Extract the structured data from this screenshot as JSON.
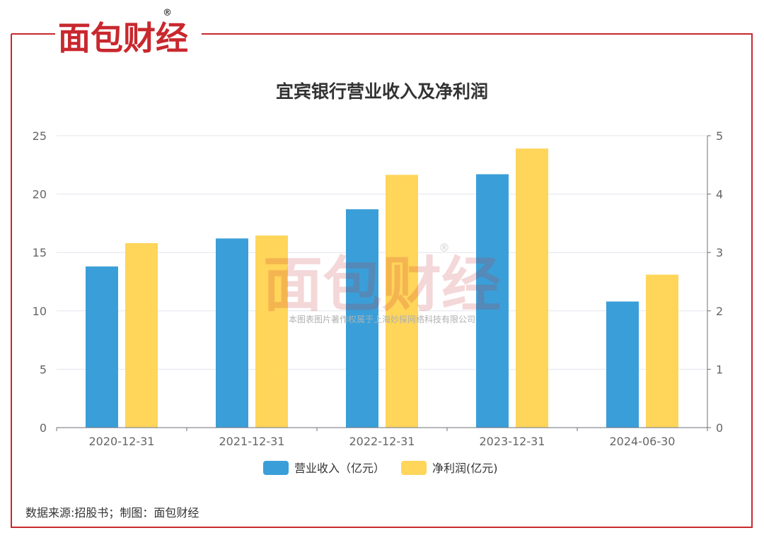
{
  "brand": {
    "name": "面包财经",
    "registered_mark": "®"
  },
  "watermark": {
    "name": "面包财经",
    "registered_mark": "®",
    "copyright_text": "本图表图片著作权属于上海妙探网络科技有限公司"
  },
  "source_note": "数据来源:招股书；制图：面包财经",
  "colors": {
    "frame": "#c8282e",
    "series_revenue": "#3a9fd8",
    "series_profit": "#ffd55a",
    "grid": "#e3e5ee"
  },
  "chart_data": {
    "type": "bar",
    "title": "宜宾银行营业收入及净利润",
    "categories": [
      "2020-12-31",
      "2021-12-31",
      "2022-12-31",
      "2023-12-31",
      "2024-06-30"
    ],
    "series": [
      {
        "name": "营业收入（亿元）",
        "axis": "left",
        "values": [
          13.8,
          16.2,
          18.7,
          21.7,
          10.8
        ]
      },
      {
        "name": "净利润(亿元)",
        "axis": "right",
        "values": [
          3.16,
          3.29,
          4.33,
          4.78,
          2.62
        ]
      }
    ],
    "left_axis": {
      "min": 0,
      "max": 25,
      "ticks": [
        "0",
        "5",
        "10",
        "15",
        "20",
        "25"
      ]
    },
    "right_axis": {
      "min": 0,
      "max": 5,
      "ticks": [
        "0",
        "1",
        "2",
        "3",
        "4",
        "5"
      ]
    },
    "grid": true,
    "legend_position": "bottom-center"
  }
}
